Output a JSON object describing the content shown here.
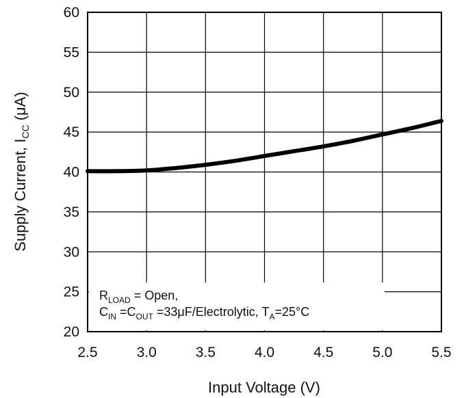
{
  "chart_data": {
    "type": "line",
    "title": "",
    "xlabel": "Input Voltage (V)",
    "ylabel": {
      "prefix": "Supply Current, I",
      "subscript": "CC",
      "suffix": " (μA)"
    },
    "xlim": [
      2.5,
      5.5
    ],
    "ylim": [
      20,
      60
    ],
    "x_ticks": [
      "2.5",
      "3.0",
      "3.5",
      "4.0",
      "4.5",
      "5.0",
      "5.5"
    ],
    "y_ticks": [
      "20",
      "25",
      "30",
      "35",
      "40",
      "45",
      "50",
      "55",
      "60"
    ],
    "grid": true,
    "series": [
      {
        "x": [
          2.5,
          2.75,
          3.0,
          3.25,
          3.5,
          3.75,
          4.0,
          4.25,
          4.5,
          4.75,
          5.0,
          5.25,
          5.5
        ],
        "y": [
          40.1,
          40.1,
          40.2,
          40.5,
          40.9,
          41.4,
          42.0,
          42.6,
          43.2,
          43.9,
          44.7,
          45.5,
          46.4
        ]
      }
    ],
    "annotation": {
      "line1": {
        "r": "R",
        "r_sub": "LOAD",
        "text": " = Open,"
      },
      "line2": {
        "cin": "C",
        "cin_sub": "IN",
        "eq": " =C",
        "cout_sub": "OUT",
        "text": " =33μF/Electrolytic, T",
        "ta_sub": "A",
        "end": "=25°C"
      }
    }
  }
}
